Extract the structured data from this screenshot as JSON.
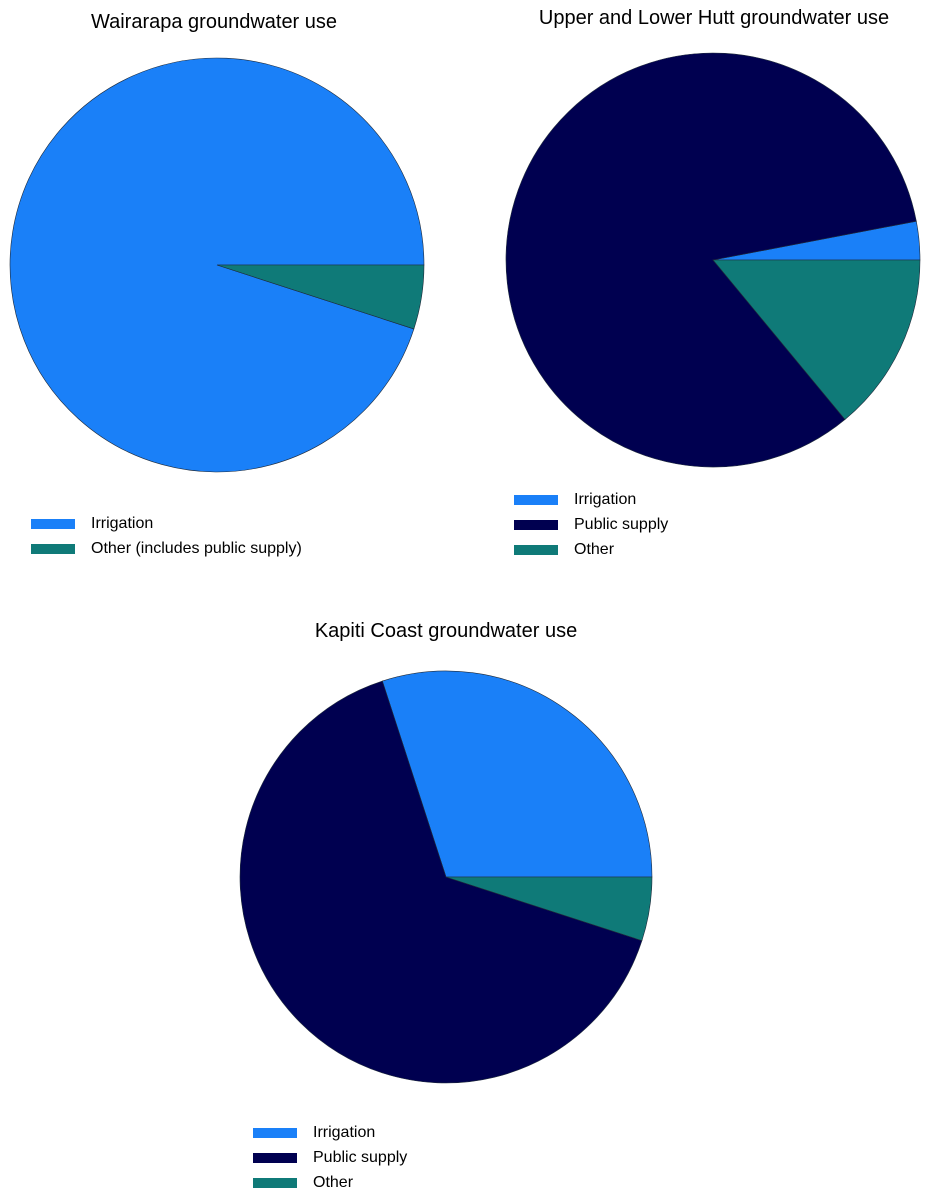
{
  "chart_data": [
    {
      "type": "pie",
      "title": "Wairarapa groundwater use",
      "legend_placement": "bottom-left",
      "slices": [
        {
          "label": "Irrigation",
          "value": 95,
          "color": "#1a80f8"
        },
        {
          "label": "Other (includes public supply)",
          "value": 5,
          "color": "#0f7a78"
        }
      ]
    },
    {
      "type": "pie",
      "title": "Upper and Lower Hutt groundwater use",
      "legend_placement": "bottom-left",
      "slices": [
        {
          "label": "Irrigation",
          "value": 3,
          "color": "#1a80f8"
        },
        {
          "label": "Public supply",
          "value": 83,
          "color": "#000050"
        },
        {
          "label": "Other",
          "value": 14,
          "color": "#0f7a78"
        }
      ]
    },
    {
      "type": "pie",
      "title": "Kapiti Coast groundwater use",
      "legend_placement": "bottom-left",
      "slices": [
        {
          "label": "Irrigation",
          "value": 30,
          "color": "#1a80f8"
        },
        {
          "label": "Public supply",
          "value": 65,
          "color": "#000050"
        },
        {
          "label": "Other",
          "value": 5,
          "color": "#0f7a78"
        }
      ]
    }
  ]
}
